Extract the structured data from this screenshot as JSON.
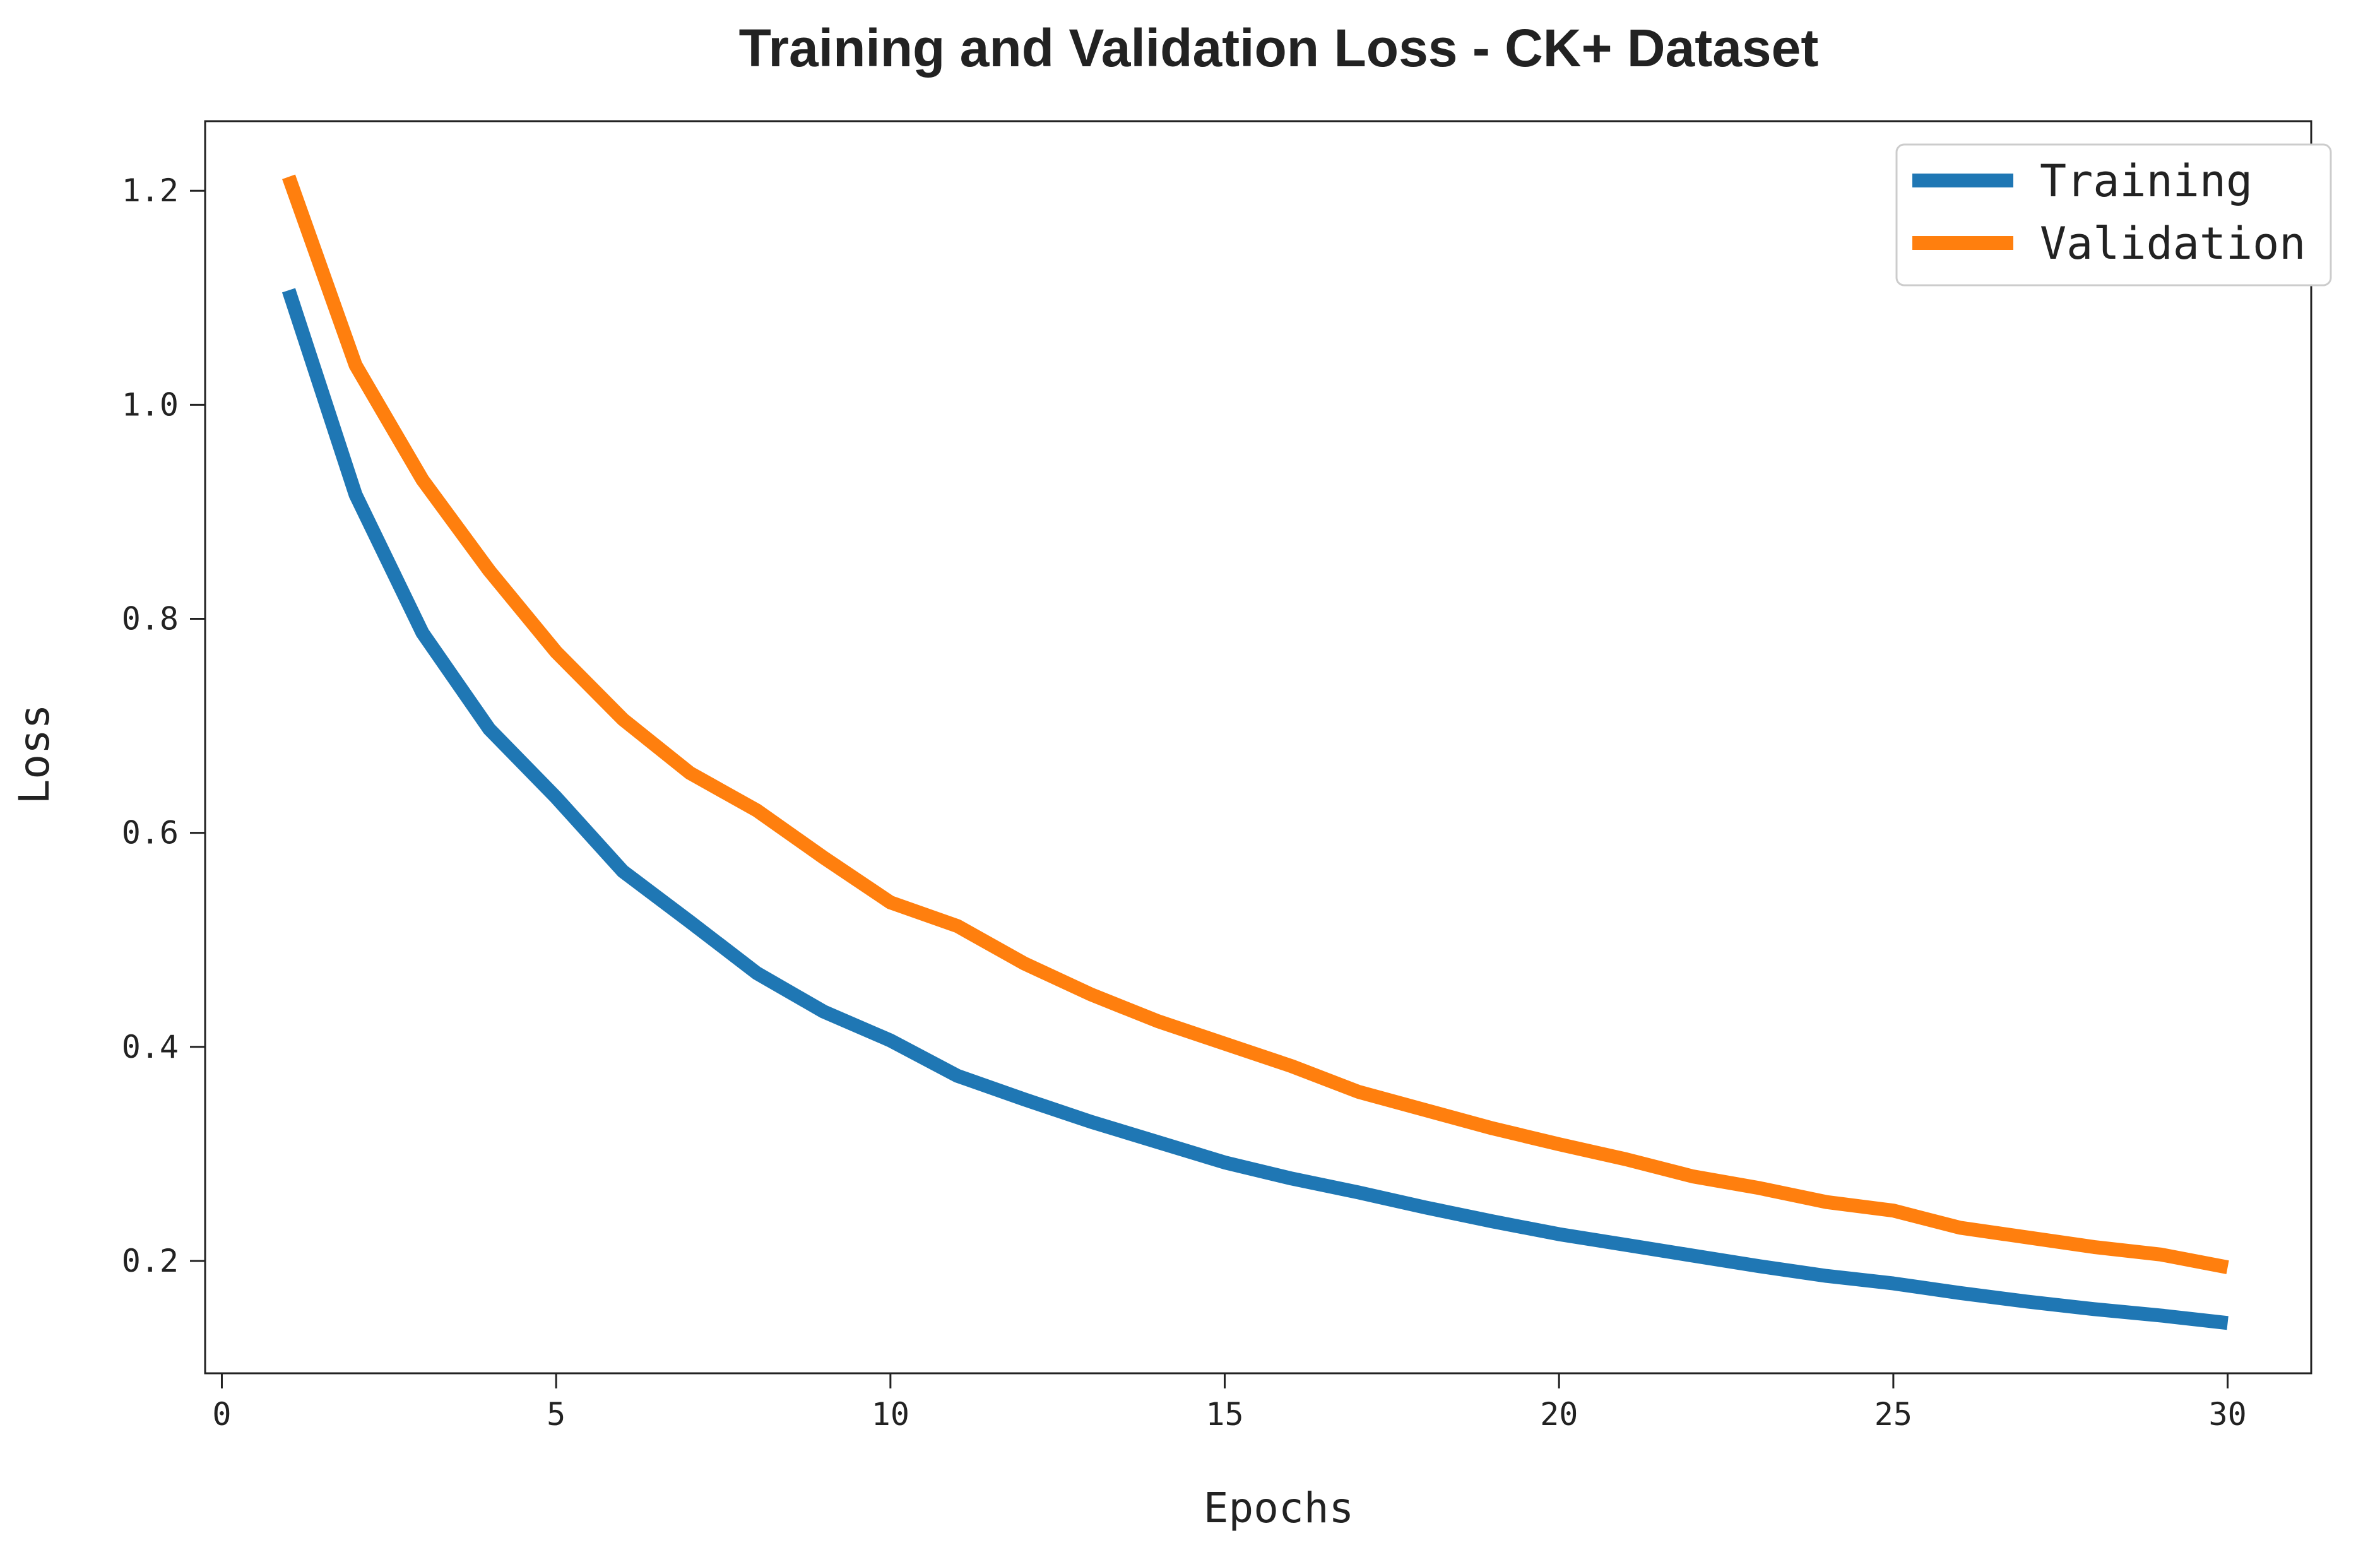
{
  "chart_data": {
    "type": "line",
    "title": "Training and Validation Loss - CK+ Dataset",
    "xlabel": "Epochs",
    "ylabel": "Loss",
    "xlim": [
      -0.25,
      31.25
    ],
    "ylim": [
      0.095,
      1.265
    ],
    "xticks": [
      0,
      5,
      10,
      15,
      20,
      25,
      30
    ],
    "xtick_labels": [
      "0",
      "5",
      "10",
      "15",
      "20",
      "25",
      "30"
    ],
    "yticks": [
      0.2,
      0.4,
      0.6,
      0.8,
      1.0,
      1.2
    ],
    "ytick_labels": [
      "0.2",
      "0.4",
      "0.6",
      "0.8",
      "1.0",
      "1.2"
    ],
    "grid": false,
    "legend_position": "top-right",
    "x": [
      1,
      2,
      3,
      4,
      5,
      6,
      7,
      8,
      9,
      10,
      11,
      12,
      13,
      14,
      15,
      16,
      17,
      18,
      19,
      20,
      21,
      22,
      23,
      24,
      25,
      26,
      27,
      28,
      29,
      30
    ],
    "series": [
      {
        "name": "Training",
        "color": "#1f77b4",
        "values": [
          1.107,
          0.916,
          0.787,
          0.697,
          0.633,
          0.564,
          0.517,
          0.469,
          0.433,
          0.406,
          0.373,
          0.351,
          0.33,
          0.311,
          0.292,
          0.277,
          0.264,
          0.25,
          0.237,
          0.225,
          0.215,
          0.205,
          0.195,
          0.186,
          0.179,
          0.17,
          0.162,
          0.155,
          0.149,
          0.142
        ]
      },
      {
        "name": "Validation",
        "color": "#ff7f0e",
        "values": [
          1.213,
          1.037,
          0.93,
          0.845,
          0.769,
          0.706,
          0.656,
          0.621,
          0.577,
          0.535,
          0.513,
          0.478,
          0.449,
          0.424,
          0.403,
          0.382,
          0.358,
          0.341,
          0.324,
          0.309,
          0.295,
          0.279,
          0.268,
          0.255,
          0.247,
          0.231,
          0.222,
          0.213,
          0.206,
          0.194
        ]
      }
    ]
  }
}
